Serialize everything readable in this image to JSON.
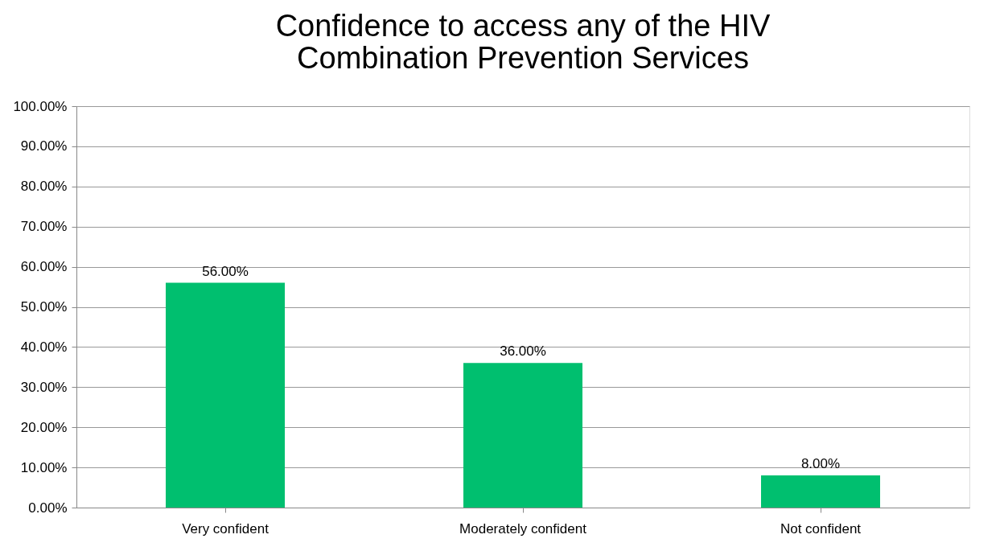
{
  "chart_data": {
    "type": "bar",
    "title": [
      "Confidence to access any of the HIV",
      "Combination Prevention Services"
    ],
    "categories": [
      "Very confident",
      "Moderately confident",
      "Not confident"
    ],
    "values": [
      56,
      36,
      8
    ],
    "value_labels": [
      "56.00%",
      "36.00%",
      "8.00%"
    ],
    "color": "#00bf6f",
    "ylim": [
      0,
      100
    ],
    "yticks": [
      {
        "value": 0,
        "label": "0.00%"
      },
      {
        "value": 10,
        "label": "10.00%"
      },
      {
        "value": 20,
        "label": "20.00%"
      },
      {
        "value": 30,
        "label": "30.00%"
      },
      {
        "value": 40,
        "label": "40.00%"
      },
      {
        "value": 50,
        "label": "50.00%"
      },
      {
        "value": 60,
        "label": "60.00%"
      },
      {
        "value": 70,
        "label": "70.00%"
      },
      {
        "value": 80,
        "label": "80.00%"
      },
      {
        "value": 90,
        "label": "90.00%"
      },
      {
        "value": 100,
        "label": "100.00%"
      }
    ],
    "grid": "y"
  }
}
